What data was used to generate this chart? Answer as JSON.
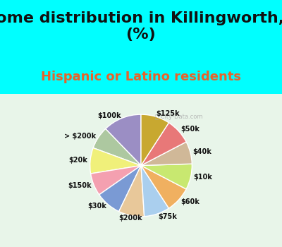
{
  "title": "Income distribution in Killingworth, CT\n(%)",
  "subtitle": "Hispanic or Latino residents",
  "watermark": "City-Data.com",
  "background_top": "#00FFFF",
  "background_chart": "#e8f5e9",
  "labels": [
    "$100k",
    "> $200k",
    "$20k",
    "$150k",
    "$30k",
    "$200k",
    "$75k",
    "$60k",
    "$10k",
    "$40k",
    "$50k",
    "$125k"
  ],
  "values": [
    12,
    7,
    8,
    7,
    8,
    8,
    8,
    8,
    8,
    7,
    8,
    9
  ],
  "colors": [
    "#9b8ec4",
    "#adc8a0",
    "#f0f07a",
    "#f4a0b0",
    "#7a9ad4",
    "#e8c89a",
    "#aacfee",
    "#f0b060",
    "#c8e870",
    "#d0b898",
    "#e87878",
    "#c8a830"
  ],
  "title_fontsize": 16,
  "subtitle_fontsize": 13,
  "subtitle_color": "#e8622a"
}
